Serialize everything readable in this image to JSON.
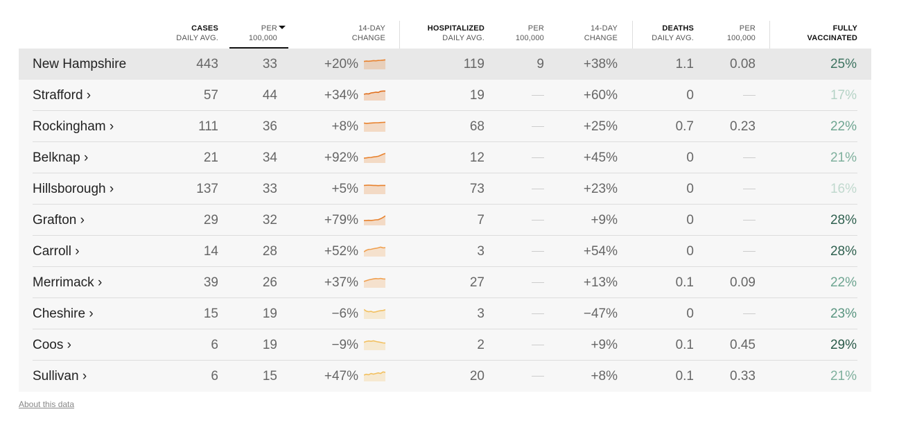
{
  "header": {
    "cases": {
      "title": "CASES",
      "sub": "DAILY AVG."
    },
    "cases_per": {
      "title": "PER",
      "sub": "100,000"
    },
    "cases_change": {
      "title": "14-DAY",
      "sub": "CHANGE"
    },
    "hosp": {
      "title": "HOSPITALIZED",
      "sub": "DAILY AVG."
    },
    "hosp_per": {
      "title": "PER",
      "sub": "100,000"
    },
    "hosp_change": {
      "title": "14-DAY",
      "sub": "CHANGE"
    },
    "deaths": {
      "title": "DEATHS",
      "sub": "DAILY AVG."
    },
    "deaths_per": {
      "title": "PER",
      "sub": "100,000"
    },
    "vacc": {
      "title": "FULLY",
      "sub": "VACCINATED"
    }
  },
  "rows": [
    {
      "name": "New Hampshire",
      "cases": "443",
      "per": "33",
      "change": "+20%",
      "hosp": "119",
      "hosp_per": "9",
      "hosp_change": "+38%",
      "deaths": "1.1",
      "deaths_per": "0.08",
      "vacc": "25%",
      "vacc_color": "#3d7360",
      "spark_color": "#e8822e",
      "trend": [
        5,
        5.2,
        5.1,
        5.3,
        5.5,
        5.4,
        5.6,
        5.7,
        5.8,
        6
      ]
    },
    {
      "name": "Strafford ›",
      "cases": "57",
      "per": "44",
      "change": "+34%",
      "hosp": "19",
      "hosp_per": "",
      "hosp_change": "+60%",
      "deaths": "0",
      "deaths_per": "",
      "vacc": "17%",
      "vacc_color": "#b5d3c6",
      "spark_color": "#e06e1c",
      "trend": [
        4,
        4.3,
        4.2,
        4.8,
        5,
        5.3,
        5.1,
        5.8,
        6,
        6
      ]
    },
    {
      "name": "Rockingham ›",
      "cases": "111",
      "per": "36",
      "change": "+8%",
      "hosp": "68",
      "hosp_per": "",
      "hosp_change": "+25%",
      "deaths": "0.7",
      "deaths_per": "0.23",
      "vacc": "22%",
      "vacc_color": "#6ea591",
      "spark_color": "#e8822e",
      "trend": [
        5.5,
        5.3,
        5.4,
        5.5,
        5.6,
        5.7,
        5.7,
        5.8,
        5.9,
        6
      ]
    },
    {
      "name": "Belknap ›",
      "cases": "21",
      "per": "34",
      "change": "+92%",
      "hosp": "12",
      "hosp_per": "",
      "hosp_change": "+45%",
      "deaths": "0",
      "deaths_per": "",
      "vacc": "21%",
      "vacc_color": "#7fb09d",
      "spark_color": "#e8822e",
      "trend": [
        3,
        3.2,
        3.4,
        3.5,
        3.8,
        4,
        4.2,
        4.8,
        5.5,
        6
      ]
    },
    {
      "name": "Hillsborough ›",
      "cases": "137",
      "per": "33",
      "change": "+5%",
      "hosp": "73",
      "hosp_per": "",
      "hosp_change": "+23%",
      "deaths": "0",
      "deaths_per": "",
      "vacc": "16%",
      "vacc_color": "#c0d9ce",
      "spark_color": "#e8822e",
      "trend": [
        5.5,
        5.6,
        5.7,
        5.6,
        5.5,
        5.5,
        5.4,
        5.5,
        5.5,
        5.5
      ]
    },
    {
      "name": "Grafton ›",
      "cases": "29",
      "per": "32",
      "change": "+79%",
      "hosp": "7",
      "hosp_per": "",
      "hosp_change": "+9%",
      "deaths": "0",
      "deaths_per": "",
      "vacc": "28%",
      "vacc_color": "#2f604f",
      "spark_color": "#e8822e",
      "trend": [
        3,
        3.1,
        3.2,
        3.1,
        3.3,
        3.5,
        3.6,
        4.2,
        5,
        6
      ]
    },
    {
      "name": "Carroll ›",
      "cases": "14",
      "per": "28",
      "change": "+52%",
      "hosp": "3",
      "hosp_per": "",
      "hosp_change": "+54%",
      "deaths": "0",
      "deaths_per": "",
      "vacc": "28%",
      "vacc_color": "#2f604f",
      "spark_color": "#f0a050",
      "trend": [
        3,
        4,
        4.5,
        4.6,
        5,
        5.2,
        5.5,
        6,
        5.5,
        5.6
      ]
    },
    {
      "name": "Merrimack ›",
      "cases": "39",
      "per": "26",
      "change": "+37%",
      "hosp": "27",
      "hosp_per": "",
      "hosp_change": "+13%",
      "deaths": "0.1",
      "deaths_per": "0.09",
      "vacc": "22%",
      "vacc_color": "#6ea591",
      "spark_color": "#f0a050",
      "trend": [
        4,
        4.5,
        5,
        5.3,
        5.6,
        5.8,
        5.7,
        5.9,
        5.6,
        5.5
      ]
    },
    {
      "name": "Cheshire ›",
      "cases": "15",
      "per": "19",
      "change": "−6%",
      "hosp": "3",
      "hosp_per": "",
      "hosp_change": "−47%",
      "deaths": "0",
      "deaths_per": "",
      "vacc": "23%",
      "vacc_color": "#5a9580",
      "spark_color": "#f2c060",
      "trend": [
        6,
        5,
        4.6,
        4.8,
        4.3,
        4.5,
        5,
        5.2,
        5.4,
        5.8
      ]
    },
    {
      "name": "Coos ›",
      "cases": "6",
      "per": "19",
      "change": "−9%",
      "hosp": "2",
      "hosp_per": "",
      "hosp_change": "+9%",
      "deaths": "0.1",
      "deaths_per": "0.45",
      "vacc": "29%",
      "vacc_color": "#2a5a49",
      "spark_color": "#f2c060",
      "trend": [
        5,
        5.5,
        5.8,
        5.6,
        5.9,
        5.5,
        5.2,
        5,
        4.6,
        4.5
      ]
    },
    {
      "name": "Sullivan ›",
      "cases": "6",
      "per": "15",
      "change": "+47%",
      "hosp": "20",
      "hosp_per": "",
      "hosp_change": "+8%",
      "deaths": "0.1",
      "deaths_per": "0.33",
      "vacc": "21%",
      "vacc_color": "#7fb09d",
      "spark_color": "#f2c060",
      "trend": [
        4,
        4.5,
        4.2,
        5,
        4.6,
        5,
        5.4,
        5,
        6,
        5.7
      ]
    }
  ],
  "footer": {
    "about": "About this data"
  }
}
